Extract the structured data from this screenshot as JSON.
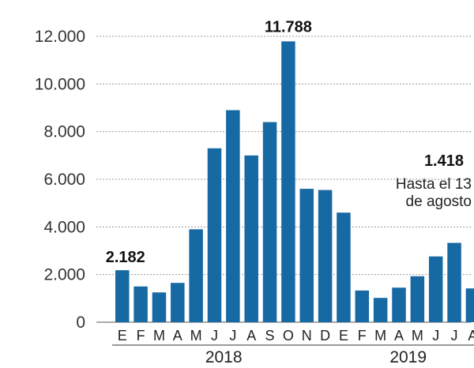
{
  "chart_data": {
    "type": "bar",
    "title": "",
    "xlabel": "",
    "ylabel": "",
    "ylim": [
      0,
      12000
    ],
    "yticks": [
      0,
      2000,
      4000,
      6000,
      8000,
      10000,
      12000
    ],
    "ytick_labels": [
      "0",
      "2.000",
      "4.000",
      "6.000",
      "8.000",
      "10.000",
      "12.000"
    ],
    "grid": true,
    "bar_color": "#1769a3",
    "categories": [
      "E",
      "F",
      "M",
      "A",
      "M",
      "J",
      "J",
      "A",
      "S",
      "O",
      "N",
      "D",
      "E",
      "F",
      "M",
      "A",
      "M",
      "J",
      "J",
      "A"
    ],
    "values": [
      2182,
      1500,
      1250,
      1650,
      3900,
      7300,
      8900,
      7000,
      8400,
      11788,
      5600,
      5550,
      4600,
      1330,
      1020,
      1450,
      1930,
      2760,
      3330,
      1418
    ],
    "years": [
      {
        "label": "2018",
        "from": 0,
        "to": 11
      },
      {
        "label": "2019",
        "from": 12,
        "to": 19
      }
    ],
    "data_labels": [
      {
        "index": 0,
        "text": "2.182"
      },
      {
        "index": 9,
        "text": "11.788"
      },
      {
        "index": 19,
        "text": "1.418"
      }
    ],
    "annotation": {
      "index": 19,
      "lines": [
        "Hasta el 13",
        "de agosto"
      ]
    }
  }
}
